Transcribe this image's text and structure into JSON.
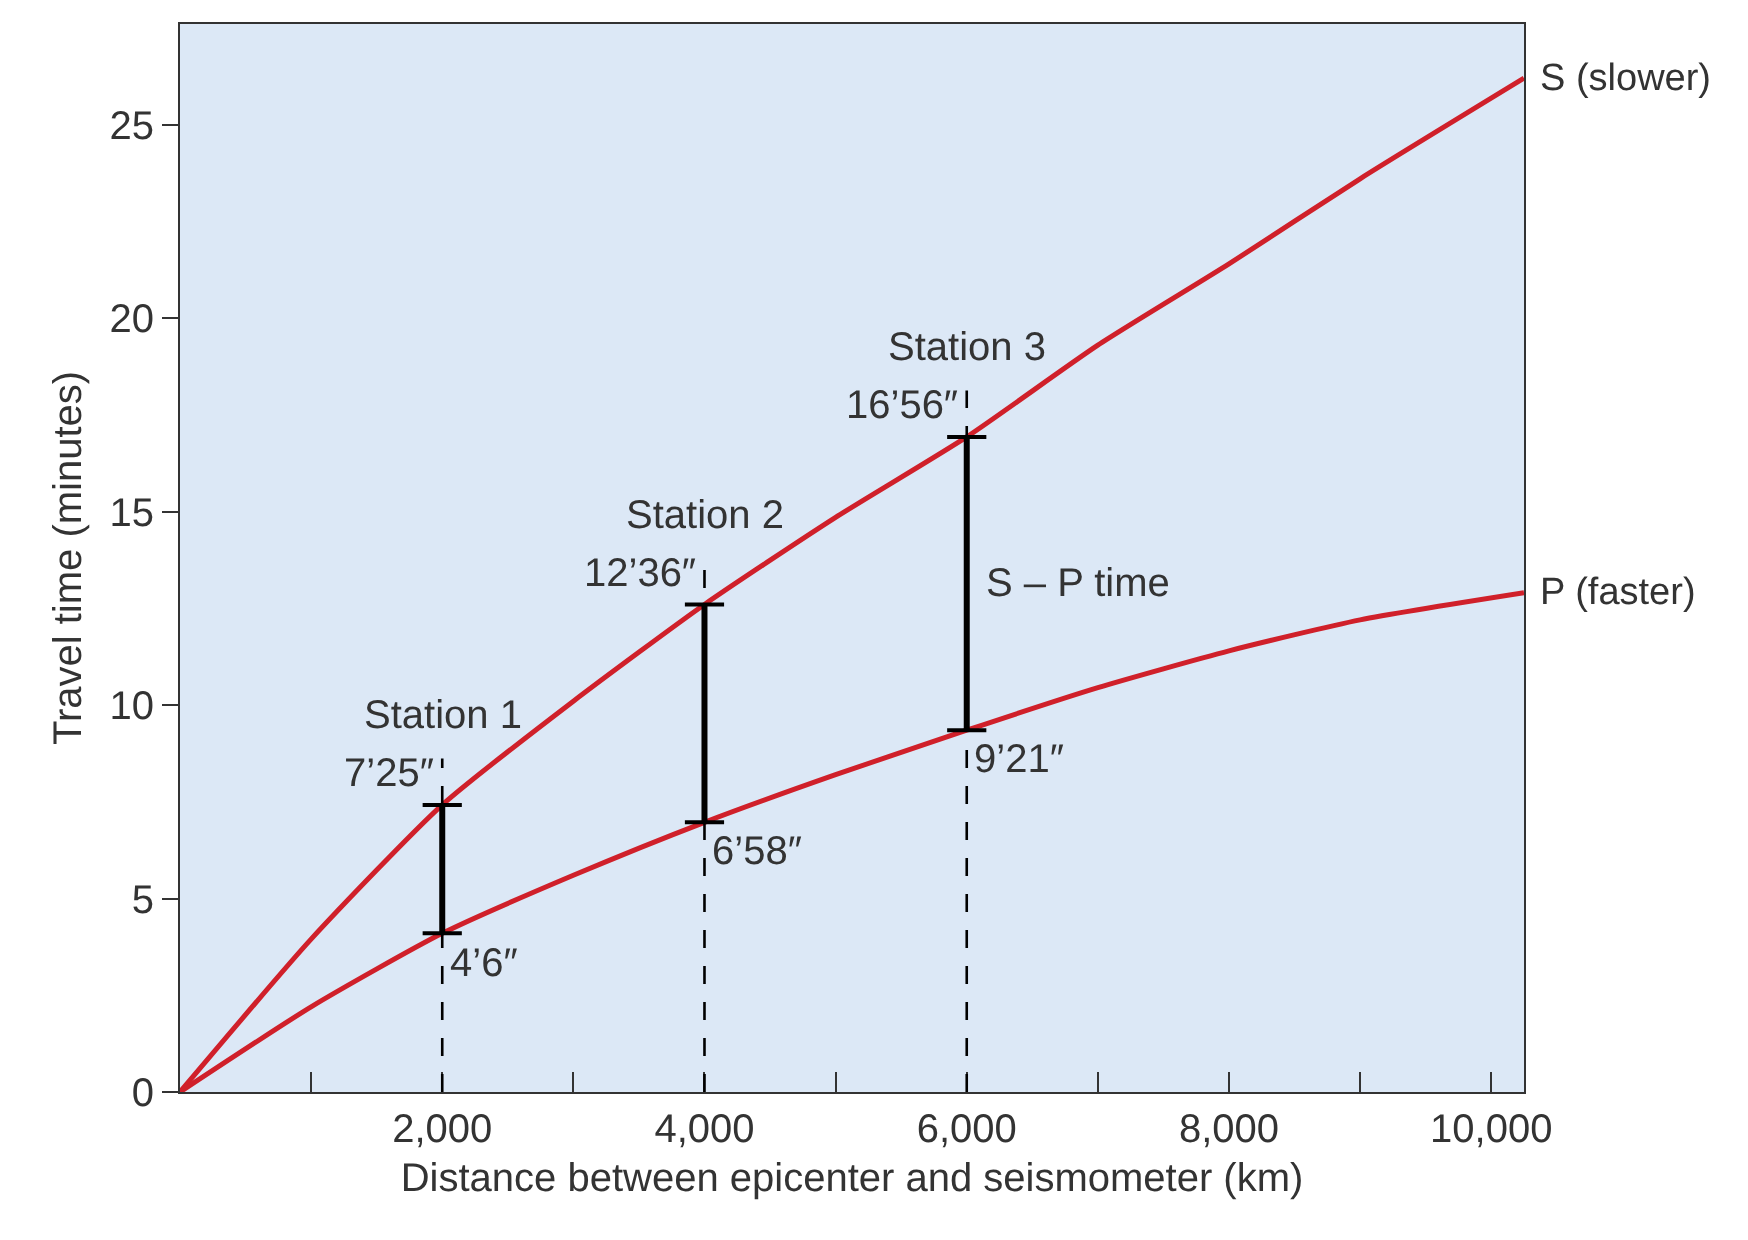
{
  "chart_data": {
    "type": "line",
    "xlabel": "Distance between epicenter and seismometer (km)",
    "ylabel": "Travel time (minutes)",
    "x": [
      0,
      1000,
      2000,
      3000,
      4000,
      5000,
      6000,
      7000,
      8000,
      9000,
      10250
    ],
    "series": [
      {
        "name": "S (slower)",
        "color": "#d0202a",
        "values": [
          0,
          3.95,
          7.42,
          10.1,
          12.6,
          14.85,
          16.93,
          19.3,
          21.4,
          23.6,
          26.2
        ]
      },
      {
        "name": "P (faster)",
        "color": "#d0202a",
        "values": [
          0,
          2.2,
          4.1,
          5.6,
          6.97,
          8.2,
          9.35,
          10.45,
          11.4,
          12.2,
          12.9
        ]
      },
      {
        "name": "S – P time",
        "color": "#000000",
        "x": [
          2000,
          2000,
          3000,
          4000,
          4000,
          5000,
          6000,
          6000
        ],
        "values": [
          4.1,
          7.42,
          null,
          6.97,
          12.6,
          null,
          9.35,
          16.93
        ]
      }
    ],
    "xlim": [
      0,
      10250
    ],
    "ylim": [
      0,
      27.6
    ],
    "xticks": [
      {
        "value": 1000,
        "label": null
      },
      {
        "value": 2000,
        "label": "2,000"
      },
      {
        "value": 3000,
        "label": null
      },
      {
        "value": 4000,
        "label": "4,000"
      },
      {
        "value": 5000,
        "label": null
      },
      {
        "value": 6000,
        "label": "6,000"
      },
      {
        "value": 7000,
        "label": null
      },
      {
        "value": 8000,
        "label": "8,000"
      },
      {
        "value": 9000,
        "label": null
      },
      {
        "value": 10000,
        "label": "10,000"
      }
    ],
    "yticks": [
      0,
      5,
      10,
      15,
      20,
      25
    ],
    "ref_lines": [
      {
        "axis": "x",
        "value": 2000,
        "line_style": "dashed",
        "color": "#000000",
        "label": "Station 1"
      },
      {
        "axis": "x",
        "value": 4000,
        "line_style": "dashed",
        "color": "#000000",
        "label": "Station 2"
      },
      {
        "axis": "x",
        "value": 6000,
        "line_style": "dashed",
        "color": "#000000",
        "label": "Station 3"
      }
    ],
    "annotations": [
      {
        "text": "7’25″",
        "x": 2000,
        "y": 7.42
      },
      {
        "text": "12’36″",
        "x": 4000,
        "y": 12.6
      },
      {
        "text": "16’56″",
        "x": 6000,
        "y": 16.93
      },
      {
        "text": "4’6″",
        "x": 2000,
        "y": 4.1
      },
      {
        "text": "6’58″",
        "x": 4000,
        "y": 6.97
      },
      {
        "text": "9’21″",
        "x": 6000,
        "y": 9.35
      }
    ],
    "legend": false,
    "grid": false
  }
}
